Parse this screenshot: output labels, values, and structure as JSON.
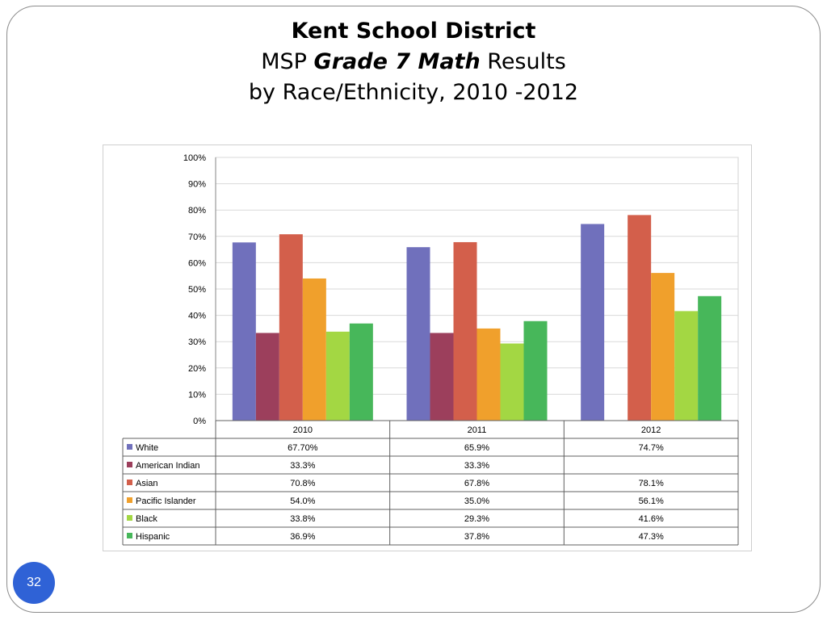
{
  "slide": {
    "title_line1": "Kent School District",
    "title_line2_pre": "MSP ",
    "title_line2_bold": "Grade 7 Math",
    "title_line2_post": " Results",
    "title_line3": "by Race/Ethnicity, 2010 -2012",
    "page_number": "32"
  },
  "chart_data": {
    "type": "bar",
    "title": "Kent School District MSP Grade 7 Math Results by Race/Ethnicity, 2010 -2012",
    "categories": [
      "2010",
      "2011",
      "2012"
    ],
    "ylim": [
      0,
      100
    ],
    "y_ticks": [
      "0%",
      "10%",
      "20%",
      "30%",
      "40%",
      "50%",
      "60%",
      "70%",
      "80%",
      "90%",
      "100%"
    ],
    "grid": true,
    "legend_placement": "data-table-left",
    "series": [
      {
        "name": "White",
        "color": "#7070bc",
        "values": [
          67.7,
          65.9,
          74.7
        ],
        "labels": [
          "67.70%",
          "65.9%",
          "74.7%"
        ]
      },
      {
        "name": "American Indian",
        "color": "#9c3f5c",
        "values": [
          33.3,
          33.3,
          null
        ],
        "labels": [
          "33.3%",
          "33.3%",
          ""
        ]
      },
      {
        "name": "Asian",
        "color": "#d35f4b",
        "values": [
          70.8,
          67.8,
          78.1
        ],
        "labels": [
          "70.8%",
          "67.8%",
          "78.1%"
        ]
      },
      {
        "name": "Pacific Islander",
        "color": "#f0a02c",
        "values": [
          54.0,
          35.0,
          56.1
        ],
        "labels": [
          "54.0%",
          "35.0%",
          "56.1%"
        ]
      },
      {
        "name": "Black",
        "color": "#a3d743",
        "values": [
          33.8,
          29.3,
          41.6
        ],
        "labels": [
          "33.8%",
          "29.3%",
          "41.6%"
        ]
      },
      {
        "name": "Hispanic",
        "color": "#47b75a",
        "values": [
          36.9,
          37.8,
          47.3
        ],
        "labels": [
          "36.9%",
          "37.8%",
          "47.3%"
        ]
      }
    ]
  }
}
